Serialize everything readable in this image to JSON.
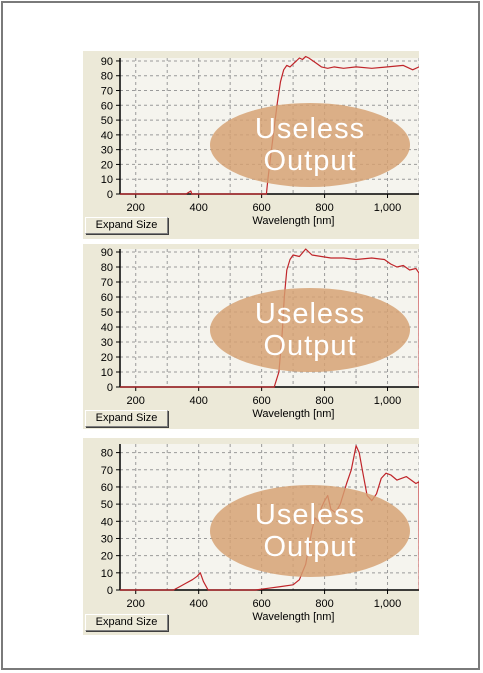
{
  "colors": {
    "panel": "#ece9d8",
    "plot_bg": "#f5f4ee",
    "trace": "#c0252a",
    "overlay": "#d6a070"
  },
  "overlay": {
    "line1": "Useless",
    "line2": "Output"
  },
  "expand_label": "Expand Size",
  "charts": [
    {
      "chart_data": {
        "type": "line",
        "xlabel": "Wavelength [nm]",
        "xlim": [
          150,
          1100
        ],
        "ylim": [
          0,
          92
        ],
        "xticks": [
          200,
          400,
          600,
          800,
          1000
        ],
        "xtick_labels": [
          "200",
          "400",
          "600",
          "800",
          "1,000"
        ],
        "yticks": [
          0,
          10,
          20,
          30,
          40,
          50,
          60,
          70,
          80,
          90
        ],
        "grid": true,
        "series": [
          {
            "x": [
              150,
              360,
              375,
              378,
              381,
              600,
              615,
              620,
              630,
              640,
              650,
              660,
              670,
              680,
              690,
              700,
              710,
              720,
              730,
              740,
              750,
              770,
              790,
              810,
              830,
              860,
              900,
              950,
              1000,
              1050,
              1080,
              1100
            ],
            "y": [
              0,
              0,
              2,
              0,
              0,
              0,
              0,
              10,
              28,
              45,
              62,
              76,
              84,
              87,
              86,
              88,
              90,
              92,
              91,
              93,
              92,
              89,
              86,
              85,
              86,
              85,
              86,
              85,
              86,
              87,
              84,
              86
            ]
          }
        ]
      }
    },
    {
      "chart_data": {
        "type": "line",
        "xlabel": "Wavelength [nm]",
        "xlim": [
          150,
          1100
        ],
        "ylim": [
          0,
          92
        ],
        "xticks": [
          200,
          400,
          600,
          800,
          1000
        ],
        "xtick_labels": [
          "200",
          "400",
          "600",
          "800",
          "1,000"
        ],
        "yticks": [
          0,
          10,
          20,
          30,
          40,
          50,
          60,
          70,
          80,
          90
        ],
        "grid": true,
        "series": [
          {
            "x": [
              150,
              640,
              655,
              665,
              672,
              680,
              690,
              700,
              720,
              740,
              760,
              790,
              820,
              860,
              900,
              950,
              990,
              1010,
              1030,
              1050,
              1070,
              1090,
              1100,
              1101
            ],
            "y": [
              0,
              0,
              10,
              35,
              60,
              78,
              85,
              88,
              87,
              92,
              88,
              87,
              86,
              86,
              85,
              86,
              85,
              82,
              80,
              81,
              78,
              79,
              76,
              0
            ]
          }
        ]
      }
    },
    {
      "chart_data": {
        "type": "line",
        "xlabel": "Wavelength [nm]",
        "xlim": [
          150,
          1100
        ],
        "ylim": [
          0,
          85
        ],
        "xticks": [
          200,
          400,
          600,
          800,
          1000
        ],
        "xtick_labels": [
          "200",
          "400",
          "600",
          "800",
          "1,000"
        ],
        "yticks": [
          0,
          10,
          20,
          30,
          40,
          50,
          60,
          70,
          80
        ],
        "grid": true,
        "series": [
          {
            "x": [
              150,
              320,
              340,
              360,
              380,
              395,
              405,
              415,
              430,
              580,
              620,
              660,
              700,
              720,
              740,
              760,
              770,
              780,
              790,
              800,
              810,
              820,
              835,
              850,
              870,
              885,
              900,
              910,
              920,
              935,
              950,
              965,
              980,
              995,
              1010,
              1030,
              1060,
              1090,
              1100,
              1101
            ],
            "y": [
              0,
              0,
              2,
              4,
              6,
              8,
              10,
              5,
              0,
              0,
              1,
              2,
              3,
              6,
              15,
              35,
              42,
              40,
              48,
              52,
              55,
              47,
              45,
              50,
              62,
              70,
              84,
              80,
              70,
              55,
              52,
              56,
              65,
              68,
              67,
              64,
              66,
              62,
              63,
              0
            ]
          }
        ]
      }
    }
  ]
}
